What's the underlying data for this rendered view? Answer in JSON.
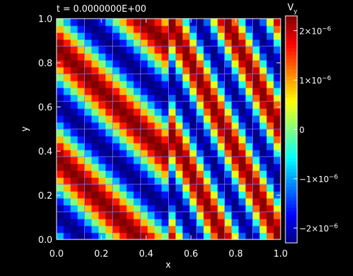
{
  "chart_data": {
    "type": "heatmap",
    "title": "t = 0.0000000E+00",
    "xlabel": "x",
    "ylabel": "y",
    "xlim": [
      0.0,
      1.0
    ],
    "ylim": [
      0.0,
      1.0
    ],
    "x_ticks": [
      "0.0",
      "0.2",
      "0.4",
      "0.6",
      "0.8",
      "1.0"
    ],
    "y_ticks": [
      "0.0",
      "0.2",
      "0.4",
      "0.6",
      "0.8",
      "1.0"
    ],
    "grid": true,
    "colorbar": {
      "label_main": "V",
      "label_sub": "y",
      "range": [
        -2.3e-06,
        2.3e-06
      ],
      "ticks": [
        {
          "value": 2e-06,
          "mantissa": "2×10",
          "exponent": "−6"
        },
        {
          "value": 1e-06,
          "mantissa": "1×10",
          "exponent": "−6"
        },
        {
          "value": 0,
          "mantissa": "0",
          "exponent": ""
        },
        {
          "value": -1e-06,
          "mantissa": "−1×10",
          "exponent": "−6"
        },
        {
          "value": -2e-06,
          "mantissa": "−2×10",
          "exponent": "−6"
        }
      ]
    },
    "field": {
      "amplitude": 2.3e-06,
      "resolution": [
        32,
        32
      ],
      "left_region": {
        "x_max": 0.5,
        "cycles_x": 2,
        "cycles_y": 2,
        "phase_deg": 180
      },
      "right_region": {
        "x_min": 0.5,
        "cycles_x": 4,
        "cycles_y": 2,
        "phase_deg": 90
      }
    }
  }
}
